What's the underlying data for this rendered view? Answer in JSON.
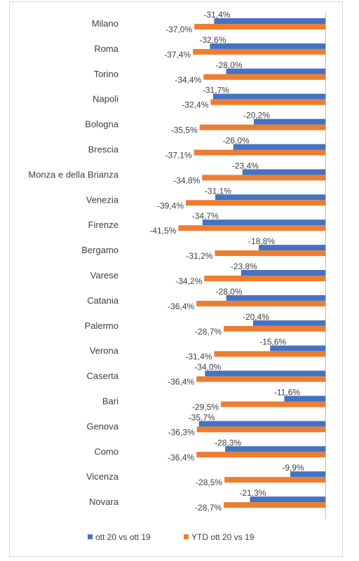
{
  "colors": {
    "series1": "#4472c4",
    "series2": "#ed7d31",
    "axis": "#bfbfbf",
    "text": "#404040"
  },
  "chart_data": {
    "type": "bar",
    "orientation": "horizontal",
    "title": "",
    "xlabel": "",
    "ylabel": "",
    "xlim": [
      -45,
      0
    ],
    "grid": false,
    "legend_position": "bottom",
    "categories": [
      "Milano",
      "Roma",
      "Torino",
      "Napoli",
      "Bologna",
      "Brescia",
      "Monza e della Brianza",
      "Venezia",
      "Firenze",
      "Bergamo",
      "Varese",
      "Catania",
      "Palermo",
      "Verona",
      "Caserta",
      "Bari",
      "Genova",
      "Como",
      "Vicenza",
      "Novara"
    ],
    "series": [
      {
        "name": "ott 20 vs ott 19",
        "values": [
          -31.4,
          -32.6,
          -28.0,
          -31.7,
          -20.2,
          -26.0,
          -23.4,
          -31.1,
          -34.7,
          -18.8,
          -23.8,
          -28.0,
          -20.4,
          -15.6,
          -34.0,
          -11.6,
          -35.7,
          -28.3,
          -9.9,
          -21.3
        ],
        "labels": [
          "-31,4%",
          "-32,6%",
          "-28,0%",
          "-31,7%",
          "-20,2%",
          "-26,0%",
          "-23,4%",
          "-31,1%",
          "-34,7%",
          "-18,8%",
          "-23,8%",
          "-28,0%",
          "-20,4%",
          "-15,6%",
          "-34,0%",
          "-11,6%",
          "-35,7%",
          "-28,3%",
          "-9,9%",
          "-21,3%"
        ]
      },
      {
        "name": "YTD ott 20 vs 19",
        "values": [
          -37.0,
          -37.4,
          -34.4,
          -32.4,
          -35.5,
          -37.1,
          -34.8,
          -39.4,
          -41.5,
          -31.2,
          -34.2,
          -36.4,
          -28.7,
          -31.4,
          -36.4,
          -29.5,
          -36.3,
          -36.4,
          -28.5,
          -28.7
        ],
        "labels": [
          "-37,0%",
          "-37,4%",
          "-34,4%",
          "-32,4%",
          "-35,5%",
          "-37,1%",
          "-34,8%",
          "-39,4%",
          "-41,5%",
          "-31,2%",
          "-34,2%",
          "-36,4%",
          "-28,7%",
          "-31,4%",
          "-36,4%",
          "-29,5%",
          "-36,3%",
          "-36,4%",
          "-28,5%",
          "-28,7%"
        ]
      }
    ]
  }
}
